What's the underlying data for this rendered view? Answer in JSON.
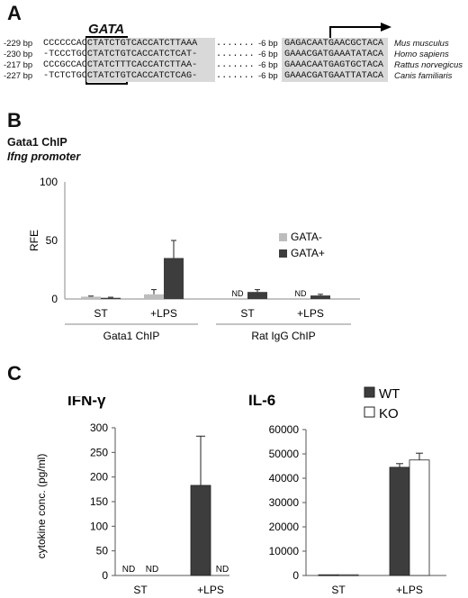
{
  "panels": {
    "a": "A",
    "b": "B",
    "c": "C"
  },
  "panel_a": {
    "motif_label": "GATA",
    "rows": [
      {
        "pos": "-229 bp",
        "left": "CCCCCCACCTATCTGTCACCATCTTAAA",
        "dots": ".......",
        "mid": "-6 bp",
        "right": "GAGACAATGAACGCTACA",
        "species": "Mus musculus"
      },
      {
        "pos": "-230 bp",
        "left": "-TCCCTGCCTATCTGTCACCATCTCAT-",
        "dots": ".......",
        "mid": "-6 bp",
        "right": "GAAACGATGAAATATACA",
        "species": "Homo sapiens"
      },
      {
        "pos": "-217 bp",
        "left": "CCCGCCACCTATCTTTCACCATCTTAA-",
        "dots": ".......",
        "mid": "-6 bp",
        "right": "GAAACAATGAGTGCTACA",
        "species": "Rattus norvegicus"
      },
      {
        "pos": "-227 bp",
        "left": "-TCTCTGCCTATCTGTCACCATCTCAG-",
        "dots": ".......",
        "mid": "-6 bp",
        "right": "GAAACGATGAATTATACA",
        "species": "Canis familiaris"
      }
    ]
  },
  "panel_b": {
    "title_line1": "Gata1 ChIP",
    "title_line2": "Ifng promoter"
  },
  "chart_data": [
    {
      "type": "bar",
      "ylabel": "RFE",
      "ylim": [
        0,
        100
      ],
      "yticks": [
        0,
        50,
        100
      ],
      "categories": [
        "ST",
        "+LPS",
        "ST",
        "+LPS"
      ],
      "groups": [
        "Gata1 ChIP",
        "Rat IgG ChIP"
      ],
      "series": [
        {
          "name": "GATA-",
          "color": "#bdbdbd",
          "values": [
            2,
            4,
            null,
            null
          ],
          "errors": [
            0.5,
            4,
            null,
            null
          ],
          "labels": [
            "",
            "",
            "ND",
            "ND"
          ]
        },
        {
          "name": "GATA+",
          "color": "#3d3d3d",
          "values": [
            1,
            35,
            6,
            3
          ],
          "errors": [
            0.5,
            15,
            2,
            1
          ],
          "labels": [
            "",
            "",
            "",
            ""
          ]
        }
      ],
      "legend": "right"
    },
    {
      "type": "bar",
      "title": "IFN-γ",
      "ylabel": "cytokine conc. (pg/ml)",
      "ylim": [
        0,
        300
      ],
      "yticks": [
        0,
        50,
        100,
        150,
        200,
        250,
        300
      ],
      "categories": [
        "ST",
        "+LPS"
      ],
      "series": [
        {
          "name": "WT",
          "color": "#3d3d3d",
          "values": [
            null,
            183
          ],
          "errors": [
            null,
            100
          ],
          "labels": [
            "ND",
            ""
          ]
        },
        {
          "name": "KO",
          "color": "#ffffff",
          "values": [
            null,
            null
          ],
          "errors": [
            null,
            null
          ],
          "labels": [
            "ND",
            "ND"
          ]
        }
      ]
    },
    {
      "type": "bar",
      "title": "IL-6",
      "ylim": [
        0,
        60000
      ],
      "yticks": [
        0,
        10000,
        20000,
        30000,
        40000,
        50000,
        60000
      ],
      "categories": [
        "ST",
        "+LPS"
      ],
      "series": [
        {
          "name": "WT",
          "color": "#3d3d3d",
          "values": [
            300,
            44500
          ],
          "errors": [
            null,
            1500
          ]
        },
        {
          "name": "KO",
          "color": "#ffffff",
          "values": [
            300,
            47500
          ],
          "errors": [
            null,
            2800
          ]
        }
      ],
      "legend": "top-right"
    }
  ]
}
